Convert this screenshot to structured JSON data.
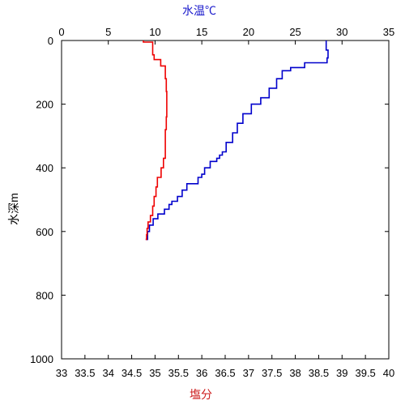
{
  "chart_data": {
    "type": "line",
    "top_axis": {
      "label": "水温℃",
      "label_color": "#1a1acc",
      "range": [
        0,
        35
      ],
      "ticks": [
        "0",
        "5",
        "10",
        "15",
        "20",
        "25",
        "30",
        "35"
      ]
    },
    "bottom_axis": {
      "label": "塩分",
      "label_color": "#cc1a1a",
      "range": [
        33,
        40
      ],
      "ticks": [
        "33",
        "33.5",
        "34",
        "34.5",
        "35",
        "35.5",
        "36",
        "36.5",
        "37",
        "37.5",
        "38",
        "38.5",
        "39",
        "39.5",
        "40"
      ]
    },
    "y_axis": {
      "label": "水深m",
      "range": [
        0,
        1000
      ],
      "inverted": true,
      "ticks": [
        "0",
        "200",
        "400",
        "600",
        "800",
        "1000"
      ]
    },
    "grid": false,
    "series": [
      {
        "axis": "top",
        "color": "#0000cc",
        "x": [
          28.3,
          28.5,
          28.4,
          26.0,
          24.5,
          23.6,
          23.0,
          22.2,
          21.3,
          20.3,
          19.4,
          18.8,
          18.3,
          17.6,
          17.2,
          16.9,
          16.6,
          15.9,
          15.3,
          15.0,
          14.6,
          13.4,
          12.9,
          12.4,
          11.8,
          11.5,
          11.0,
          10.3,
          9.8,
          9.4,
          9.2,
          9.0
        ],
        "y": [
          0,
          30,
          55,
          70,
          85,
          95,
          120,
          150,
          180,
          200,
          230,
          260,
          290,
          320,
          350,
          360,
          370,
          380,
          400,
          420,
          430,
          450,
          470,
          490,
          505,
          515,
          530,
          545,
          560,
          580,
          600,
          625
        ]
      },
      {
        "axis": "bottom",
        "color": "#ee0000",
        "x": [
          34.75,
          34.95,
          34.98,
          35.12,
          35.22,
          35.24,
          35.25,
          35.25,
          35.24,
          35.22,
          35.22,
          35.18,
          35.13,
          35.05,
          35.02,
          34.98,
          34.95,
          34.9,
          34.85,
          34.83,
          34.82,
          34.8
        ],
        "y": [
          0,
          5,
          45,
          60,
          80,
          120,
          160,
          200,
          240,
          280,
          330,
          370,
          400,
          430,
          460,
          490,
          520,
          550,
          570,
          590,
          610,
          625
        ]
      }
    ]
  }
}
